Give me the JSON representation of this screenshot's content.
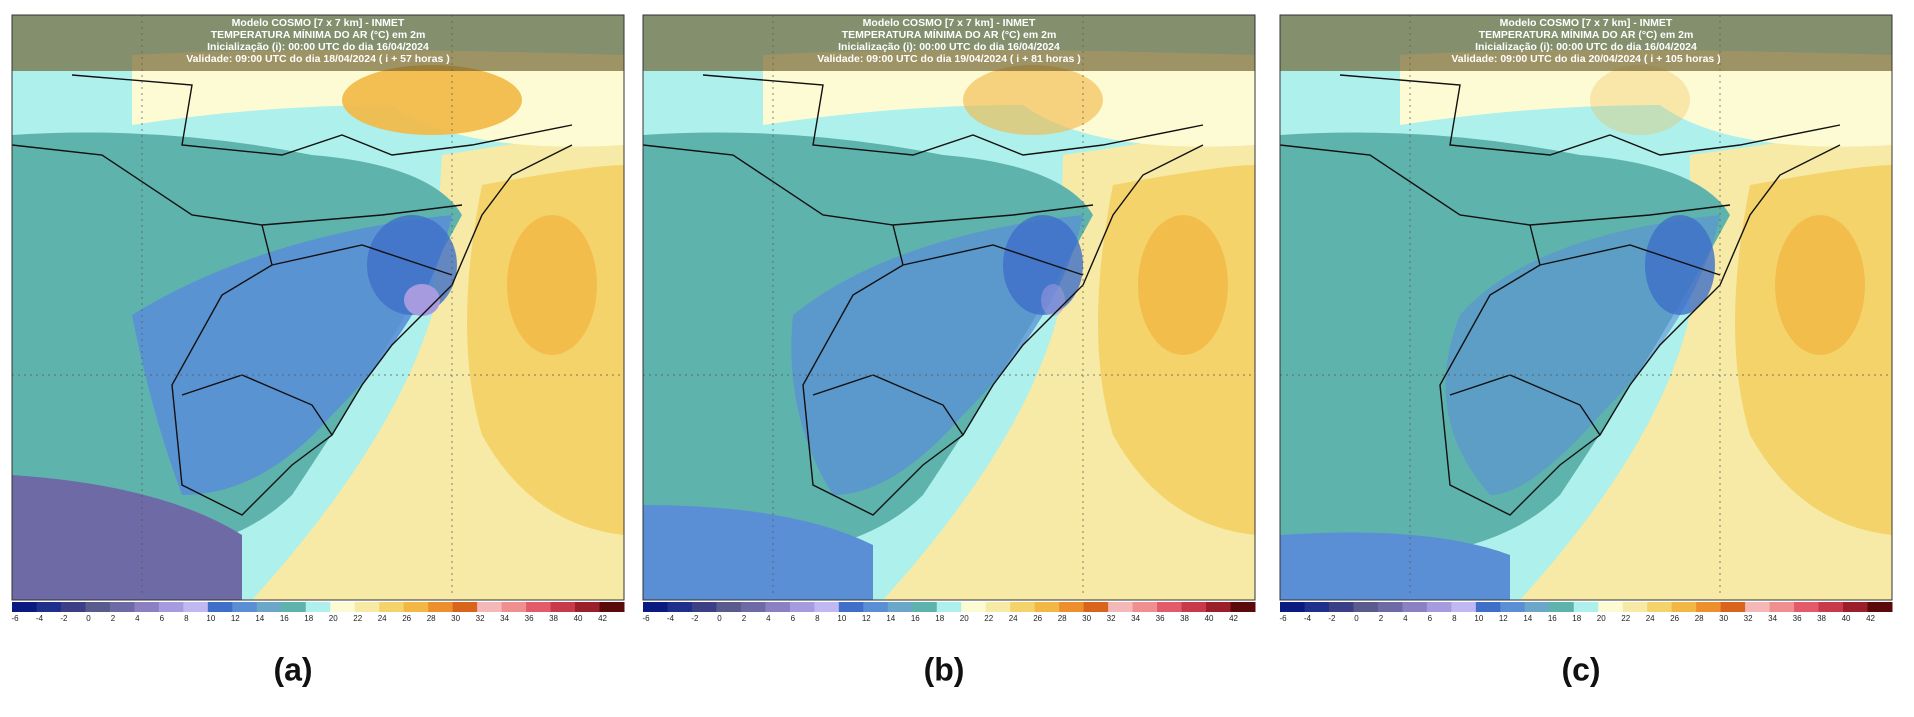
{
  "panels": [
    {
      "label": "(a)",
      "header": [
        "Modelo COSMO [7 x 7 km] - INMET",
        "TEMPERATURA MÍNIMA DO AR (°C) em 2m",
        "Inicialização (i): 00:00 UTC do dia 16/04/2024",
        "Validade: 09:00 UTC do dia 18/04/2024 ( i + 57 horas )"
      ]
    },
    {
      "label": "(b)",
      "header": [
        "Modelo COSMO [7 x 7 km] - INMET",
        "TEMPERATURA MÍNIMA DO AR (°C) em 2m",
        "Inicialização (i): 00:00 UTC do dia 16/04/2024",
        "Validade: 09:00 UTC do dia 19/04/2024 ( i + 81 horas )"
      ]
    },
    {
      "label": "(c)",
      "header": [
        "Modelo COSMO [7 x 7 km] - INMET",
        "TEMPERATURA MÍNIMA DO AR (°C) em 2m",
        "Inicialização (i): 00:00 UTC do dia 16/04/2024",
        "Validade: 09:00 UTC do dia 20/04/2024 ( i + 105 horas )"
      ]
    }
  ],
  "colorbar": {
    "ticks": [
      -6,
      -4,
      -2,
      0,
      2,
      4,
      6,
      8,
      10,
      12,
      14,
      16,
      18,
      20,
      22,
      24,
      26,
      28,
      30,
      32,
      34,
      36,
      38,
      40,
      42
    ],
    "colors": [
      "#0a1a80",
      "#1f2f8c",
      "#3b3f86",
      "#595b8c",
      "#6d6aa6",
      "#8a80c2",
      "#a79be0",
      "#c0b8f0",
      "#3f6fc8",
      "#5a8fd6",
      "#6aa7c8",
      "#5fb3ad",
      "#aef0ec",
      "#fdfbd4",
      "#f6eaa6",
      "#f4d36b",
      "#f3b844",
      "#ee8f2d",
      "#d9641c",
      "#f5b8b8",
      "#ef8f8f",
      "#e35b6a",
      "#c83a4a",
      "#9a1f2a",
      "#5a0a0a"
    ]
  }
}
